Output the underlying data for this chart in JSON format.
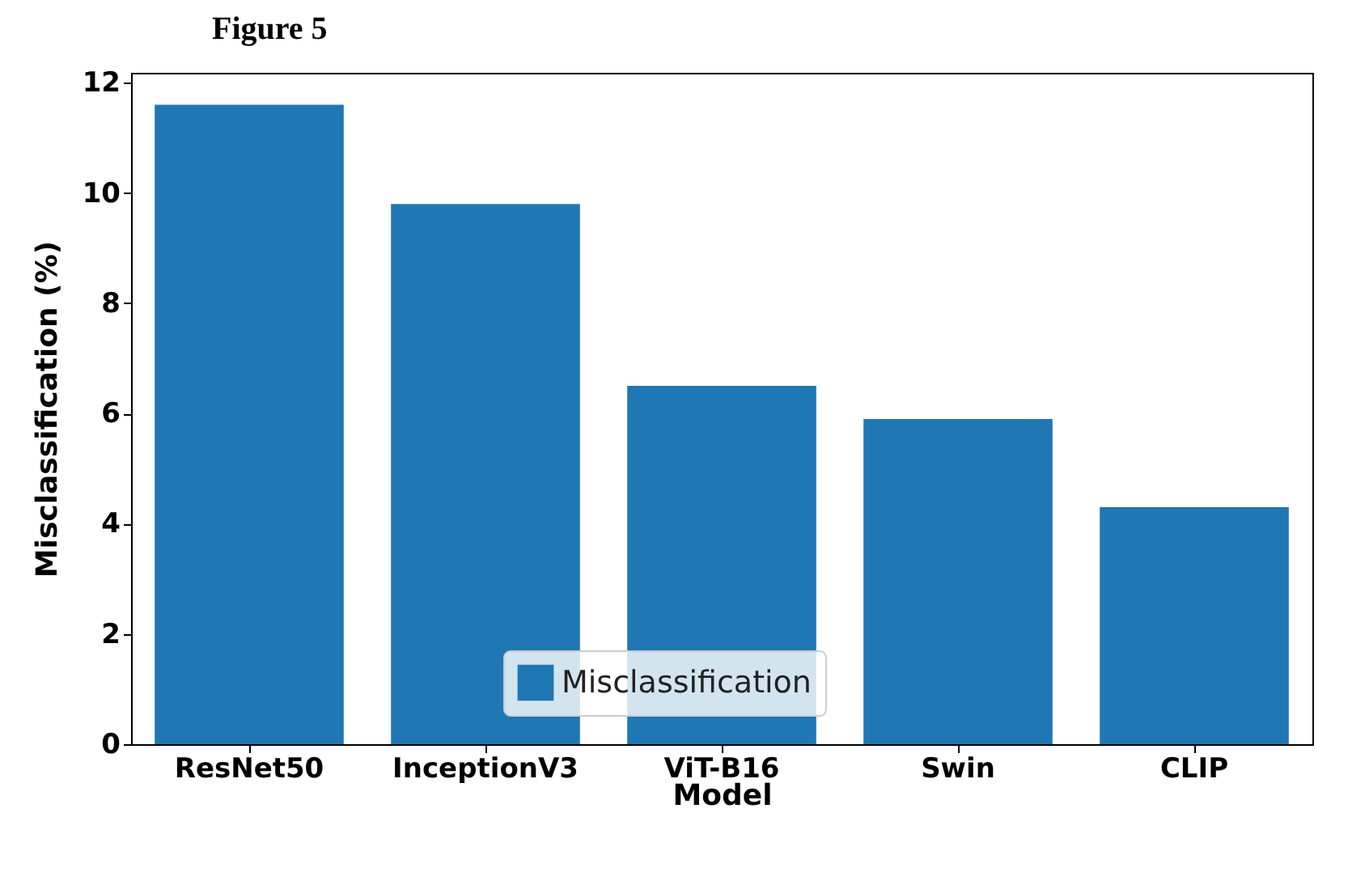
{
  "chart_data": {
    "type": "bar",
    "title": "Figure 5",
    "xlabel": "Model",
    "ylabel": "Misclassification (%)",
    "categories": [
      "ResNet50",
      "InceptionV3",
      "ViT-B16",
      "Swin",
      "CLIP"
    ],
    "series": [
      {
        "name": "Misclassification",
        "color": "#1f77b4",
        "values": [
          11.6,
          9.8,
          6.5,
          5.9,
          4.3
        ]
      }
    ],
    "ylim": [
      0,
      12.18
    ],
    "yticks": [
      0,
      2,
      4,
      6,
      8,
      10,
      12
    ],
    "grid": false,
    "legend": "bottom"
  }
}
